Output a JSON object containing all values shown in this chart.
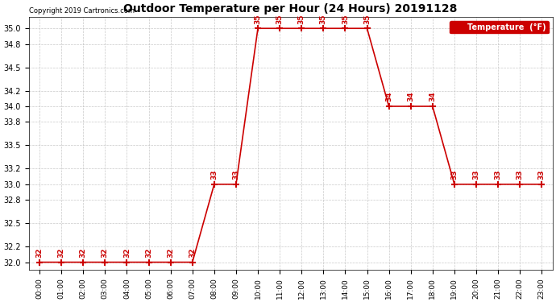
{
  "title": "Outdoor Temperature per Hour (24 Hours) 20191128",
  "copyright_text": "Copyright 2019 Cartronics.com",
  "legend_label": "Temperature  (°F)",
  "hours": [
    0,
    1,
    2,
    3,
    4,
    5,
    6,
    7,
    8,
    9,
    10,
    11,
    12,
    13,
    14,
    15,
    16,
    17,
    18,
    19,
    20,
    21,
    22,
    23
  ],
  "temps": [
    32,
    32,
    32,
    32,
    32,
    32,
    32,
    32,
    33,
    33,
    35,
    35,
    35,
    35,
    35,
    35,
    34,
    34,
    34,
    33,
    33,
    33,
    33,
    33
  ],
  "ylim": [
    31.9,
    35.15
  ],
  "yticks": [
    32.0,
    32.2,
    32.5,
    32.8,
    33.0,
    33.2,
    33.5,
    33.8,
    34.0,
    34.2,
    34.5,
    34.8,
    35.0
  ],
  "line_color": "#cc0000",
  "marker_color": "#cc0000",
  "label_color": "#cc0000",
  "background_color": "#ffffff",
  "grid_color": "#bbbbbb",
  "title_fontsize": 10,
  "legend_bg_color": "#cc0000",
  "legend_text_color": "#ffffff",
  "figsize": [
    6.9,
    3.75
  ],
  "dpi": 100
}
